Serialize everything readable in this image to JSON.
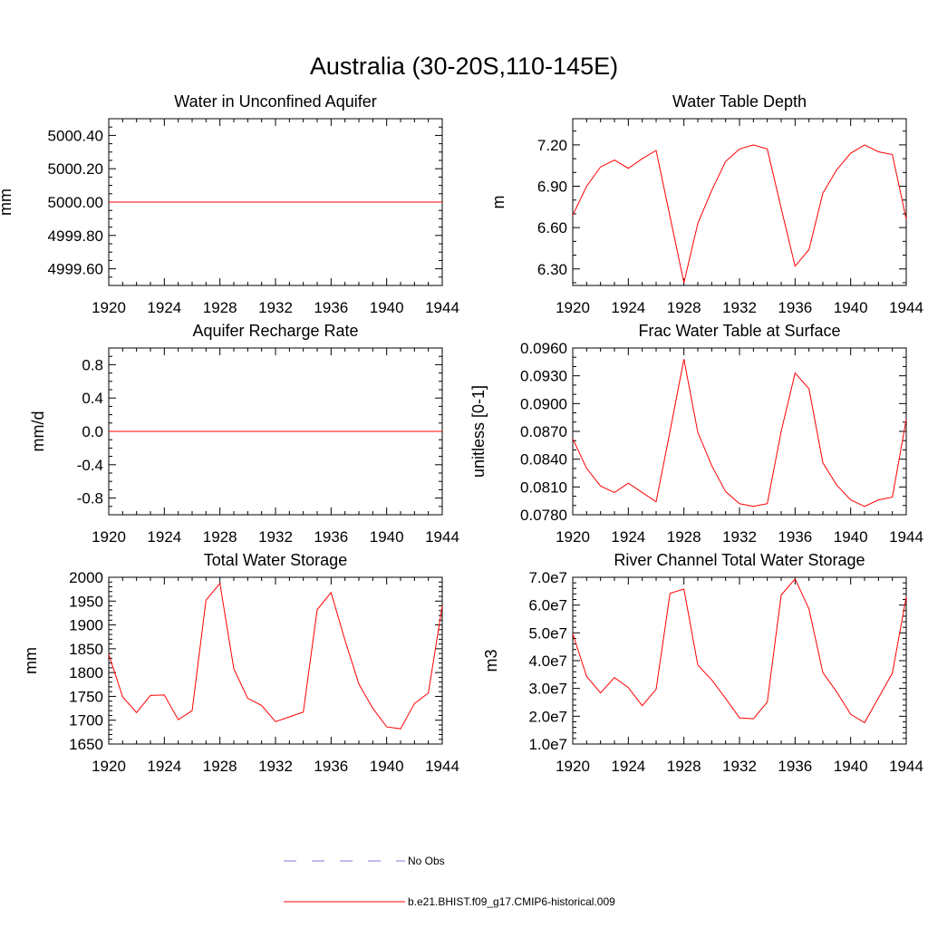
{
  "title": "Australia (30-20S,110-145E)",
  "colors": {
    "model": "#ff0000",
    "obs": "#7b7bd6",
    "frame": "#000000"
  },
  "legend": [
    {
      "label": "No Obs",
      "style": "dashed",
      "color": "#7b7bd6"
    },
    {
      "label": "b.e21.BHIST.f09_g17.CMIP6-historical.009",
      "style": "solid",
      "color": "#ff0000"
    }
  ],
  "chart_data": [
    {
      "type": "line",
      "title": "Water in Unconfined Aquifer",
      "ylabel": "mm",
      "xlim": [
        1920,
        1944
      ],
      "ylim": [
        4999.5,
        5000.5
      ],
      "xticks": [
        1920,
        1924,
        1928,
        1932,
        1936,
        1940,
        1944
      ],
      "xtick_labels": [
        "1920",
        "1924",
        "1928",
        "1932",
        "1936",
        "1940",
        "1944"
      ],
      "yticks": [
        4999.6,
        4999.8,
        5000.0,
        5000.2,
        5000.4
      ],
      "ytick_labels": [
        "4999.60",
        "4999.80",
        "5000.00",
        "5000.20",
        "5000.40"
      ],
      "x": [
        1920,
        1944
      ],
      "series": [
        {
          "values": [
            5000.0,
            5000.0
          ]
        }
      ]
    },
    {
      "type": "line",
      "title": "Water Table Depth",
      "ylabel": "m",
      "xlim": [
        1920,
        1944
      ],
      "ylim": [
        6.18,
        7.39
      ],
      "xticks": [
        1920,
        1924,
        1928,
        1932,
        1936,
        1940,
        1944
      ],
      "xtick_labels": [
        "1920",
        "1924",
        "1928",
        "1932",
        "1936",
        "1940",
        "1944"
      ],
      "yticks": [
        6.3,
        6.6,
        6.9,
        7.2
      ],
      "ytick_labels": [
        "6.30",
        "6.60",
        "6.90",
        "7.20"
      ],
      "x": [
        1920,
        1921,
        1922,
        1923,
        1924,
        1925,
        1926,
        1927,
        1928,
        1929,
        1930,
        1931,
        1932,
        1933,
        1934,
        1935,
        1936,
        1937,
        1938,
        1939,
        1940,
        1941,
        1942,
        1943,
        1944
      ],
      "series": [
        {
          "values": [
            6.69,
            6.9,
            7.04,
            7.09,
            7.03,
            7.1,
            7.16,
            6.68,
            6.2,
            6.63,
            6.87,
            7.08,
            7.17,
            7.2,
            7.17,
            6.74,
            6.32,
            6.44,
            6.85,
            7.02,
            7.14,
            7.2,
            7.15,
            7.13,
            6.66
          ]
        }
      ]
    },
    {
      "type": "line",
      "title": "Aquifer Recharge Rate",
      "ylabel": "mm/d",
      "xlim": [
        1920,
        1944
      ],
      "ylim": [
        -1.0,
        1.0
      ],
      "xticks": [
        1920,
        1924,
        1928,
        1932,
        1936,
        1940,
        1944
      ],
      "xtick_labels": [
        "1920",
        "1924",
        "1928",
        "1932",
        "1936",
        "1940",
        "1944"
      ],
      "yticks": [
        -0.8,
        -0.4,
        0.0,
        0.4,
        0.8
      ],
      "ytick_labels": [
        "-0.8",
        "-0.4",
        "0.0",
        "0.4",
        "0.8"
      ],
      "x": [
        1920,
        1944
      ],
      "series": [
        {
          "values": [
            0.0,
            0.0
          ]
        }
      ]
    },
    {
      "type": "line",
      "title": "Frac Water Table at Surface",
      "ylabel": "unitless [0-1]",
      "xlim": [
        1920,
        1944
      ],
      "ylim": [
        0.078,
        0.096
      ],
      "xticks": [
        1920,
        1924,
        1928,
        1932,
        1936,
        1940,
        1944
      ],
      "xtick_labels": [
        "1920",
        "1924",
        "1928",
        "1932",
        "1936",
        "1940",
        "1944"
      ],
      "yticks": [
        0.078,
        0.081,
        0.084,
        0.087,
        0.09,
        0.093,
        0.096
      ],
      "ytick_labels": [
        "0.0780",
        "0.0810",
        "0.0840",
        "0.0870",
        "0.0900",
        "0.0930",
        "0.0960"
      ],
      "x": [
        1920,
        1921,
        1922,
        1923,
        1924,
        1925,
        1926,
        1927,
        1928,
        1929,
        1930,
        1931,
        1932,
        1933,
        1934,
        1935,
        1936,
        1937,
        1938,
        1939,
        1940,
        1941,
        1942,
        1943,
        1944
      ],
      "series": [
        {
          "values": [
            0.0862,
            0.083,
            0.0811,
            0.0804,
            0.0814,
            0.0804,
            0.0794,
            0.087,
            0.0948,
            0.0869,
            0.0833,
            0.0805,
            0.0792,
            0.0789,
            0.0792,
            0.087,
            0.0933,
            0.0916,
            0.0836,
            0.0812,
            0.0796,
            0.0789,
            0.0796,
            0.0799,
            0.0883
          ]
        }
      ]
    },
    {
      "type": "line",
      "title": "Total Water Storage",
      "ylabel": "mm",
      "xlim": [
        1920,
        1944
      ],
      "ylim": [
        1650,
        2000
      ],
      "xticks": [
        1920,
        1924,
        1928,
        1932,
        1936,
        1940,
        1944
      ],
      "xtick_labels": [
        "1920",
        "1924",
        "1928",
        "1932",
        "1936",
        "1940",
        "1944"
      ],
      "yticks": [
        1650,
        1700,
        1750,
        1800,
        1850,
        1900,
        1950,
        2000
      ],
      "ytick_labels": [
        "1650",
        "1700",
        "1750",
        "1800",
        "1850",
        "1900",
        "1950",
        "2000"
      ],
      "x": [
        1920,
        1921,
        1922,
        1923,
        1924,
        1925,
        1926,
        1927,
        1928,
        1929,
        1930,
        1931,
        1932,
        1933,
        1934,
        1935,
        1936,
        1937,
        1938,
        1939,
        1940,
        1941,
        1942,
        1943,
        1944
      ],
      "series": [
        {
          "values": [
            1838,
            1749,
            1716,
            1752,
            1753,
            1701,
            1720,
            1952,
            1987,
            1808,
            1746,
            1731,
            1697,
            1707,
            1717,
            1932,
            1968,
            1868,
            1776,
            1725,
            1686,
            1682,
            1735,
            1757,
            1940
          ]
        }
      ]
    },
    {
      "type": "line",
      "title": "River Channel Total Water Storage",
      "ylabel": "m3",
      "xlim": [
        1920,
        1944
      ],
      "ylim": [
        10000000,
        70000000
      ],
      "xticks": [
        1920,
        1924,
        1928,
        1932,
        1936,
        1940,
        1944
      ],
      "xtick_labels": [
        "1920",
        "1924",
        "1928",
        "1932",
        "1936",
        "1940",
        "1944"
      ],
      "yticks": [
        10000000,
        20000000,
        30000000,
        40000000,
        50000000,
        60000000,
        70000000
      ],
      "ytick_labels": [
        "1.0e7",
        "2.0e7",
        "3.0e7",
        "4.0e7",
        "5.0e7",
        "6.0e7",
        "7.0e7"
      ],
      "x": [
        1920,
        1921,
        1922,
        1923,
        1924,
        1925,
        1926,
        1927,
        1928,
        1929,
        1930,
        1931,
        1932,
        1933,
        1934,
        1935,
        1936,
        1937,
        1938,
        1939,
        1940,
        1941,
        1942,
        1943,
        1944
      ],
      "series": [
        {
          "values": [
            49700000,
            34300000,
            28400000,
            33900000,
            30300000,
            23800000,
            29700000,
            64200000,
            65800000,
            38400000,
            33100000,
            26400000,
            19400000,
            19100000,
            25100000,
            63600000,
            69400000,
            58600000,
            35700000,
            28700000,
            20700000,
            17700000,
            26600000,
            35500000,
            63000000
          ]
        }
      ]
    }
  ]
}
